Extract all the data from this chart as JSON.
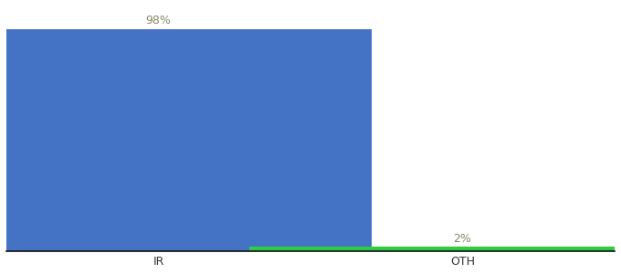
{
  "categories": [
    "IR",
    "OTH"
  ],
  "values": [
    98,
    2
  ],
  "bar_colors": [
    "#4472c4",
    "#2ecc40"
  ],
  "label_texts": [
    "98%",
    "2%"
  ],
  "label_color": "#888866",
  "ylim": [
    0,
    108
  ],
  "background_color": "#ffffff",
  "bar_width": 0.7,
  "label_fontsize": 9,
  "tick_fontsize": 9,
  "x_positions": [
    0.25,
    0.75
  ]
}
